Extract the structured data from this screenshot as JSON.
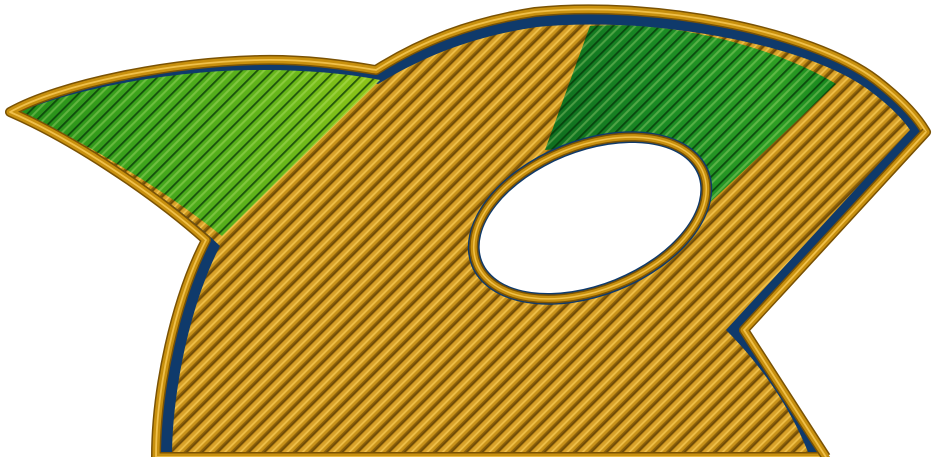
{
  "colors": {
    "background": "#ffffff",
    "perimeter": "#c8900e",
    "perimeter_edge": "#7a5204",
    "perimeter_highlight": "#f0c04a",
    "infill": "#bd8410",
    "infill_line_dark": "#6e4b08",
    "infill_line_light": "#e8b43c",
    "gap_fill": "#0f3a6b",
    "region_left_gradient": [
      "#1f8a1a",
      "#3fa51c",
      "#6bb81a",
      "#99c81a"
    ],
    "region_right_gradient": [
      "#0f6e22",
      "#1b8c24",
      "#32a326",
      "#0a7a1c"
    ],
    "region_line_dark": "#0b3f0a"
  },
  "icons": {
    "part": "penguin-silhouette-print-layer-icon",
    "hole": "elliptical-hole-icon"
  }
}
